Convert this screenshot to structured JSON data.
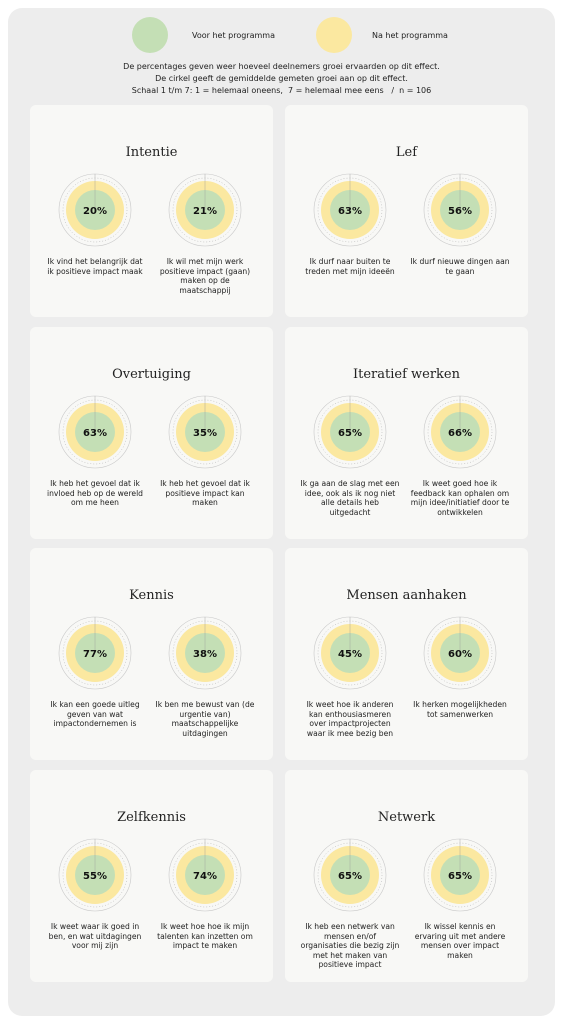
{
  "legend": {
    "before": {
      "label": "Voor het programma",
      "color": "#c4dfb5"
    },
    "after": {
      "label": "Na het programma",
      "color": "#fbe8a0"
    }
  },
  "subtitle": [
    "De percentages geven weer hoeveel deelnemers groei ervaarden op dit effect.",
    "De cirkel geeft de gemiddelde gemeten groei aan op dit effect.",
    "Schaal 1 t/m 7: 1 = helemaal oneens,  7 = helemaal mee eens   /  n = 106"
  ],
  "panels": [
    {
      "title": "Intentie",
      "items": [
        {
          "percentage": "20%",
          "text": "Ik vind het belangrijk dat ik positieve impact maak"
        },
        {
          "percentage": "21%",
          "text": "Ik wil met mijn werk positieve impact (gaan) maken op de maatschappij"
        }
      ]
    },
    {
      "title": "Lef",
      "items": [
        {
          "percentage": "63%",
          "text": "Ik durf naar buiten te treden met mijn ideeën"
        },
        {
          "percentage": "56%",
          "text": "Ik durf nieuwe dingen aan te gaan"
        }
      ]
    },
    {
      "title": "Overtuiging",
      "items": [
        {
          "percentage": "63%",
          "text": "Ik heb het gevoel dat ik invloed heb op de wereld om me heen"
        },
        {
          "percentage": "35%",
          "text": "Ik heb het gevoel dat ik positieve impact kan maken"
        }
      ]
    },
    {
      "title": "Iteratief werken",
      "items": [
        {
          "percentage": "65%",
          "text": "Ik ga aan de slag met een idee, ook als ik nog niet alle details heb uitgedacht"
        },
        {
          "percentage": "66%",
          "text": "Ik weet goed hoe ik feedback kan ophalen om mijn idee/initiatief door te ontwikkelen"
        }
      ]
    },
    {
      "title": "Kennis",
      "items": [
        {
          "percentage": "77%",
          "text": "Ik kan een goede uitleg geven van wat impactondernemen is"
        },
        {
          "percentage": "38%",
          "text": "Ik ben me bewust van (de urgentie van) maatschappelijke uitdagingen"
        }
      ]
    },
    {
      "title": "Mensen aanhaken",
      "items": [
        {
          "percentage": "45%",
          "text": "Ik weet hoe ik anderen kan enthousiasmeren over impactprojecten waar ik mee bezig ben"
        },
        {
          "percentage": "60%",
          "text": "Ik herken mogelijkheden tot samenwerken"
        }
      ]
    },
    {
      "title": "Zelfkennis",
      "items": [
        {
          "percentage": "55%",
          "text": "Ik weet waar ik goed in ben, en wat uitdagingen voor mij zijn"
        },
        {
          "percentage": "74%",
          "text": "Ik weet hoe hoe ik mijn talenten kan inzetten om impact te maken"
        }
      ]
    },
    {
      "title": "Netwerk",
      "items": [
        {
          "percentage": "65%",
          "text": "Ik heb een netwerk van mensen en/of organisaties die bezig zijn met het maken van positieve impact"
        },
        {
          "percentage": "65%",
          "text": "Ik wissel kennis en ervaring uit met andere mensen over impact maken"
        }
      ]
    }
  ]
}
